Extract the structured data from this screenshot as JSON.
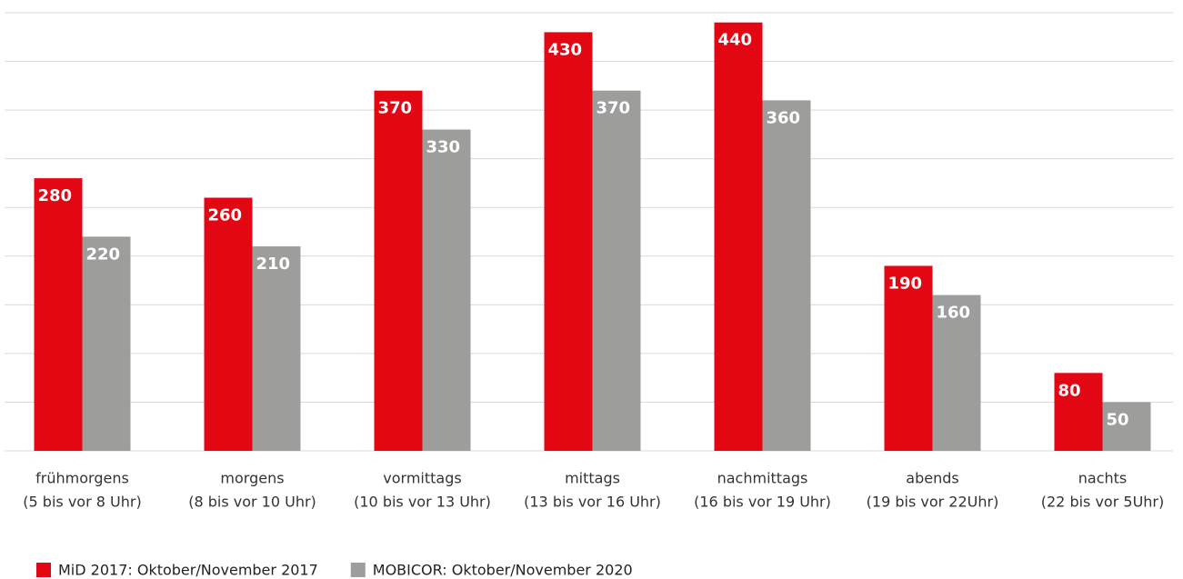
{
  "chart_data": {
    "type": "bar",
    "categories": [
      [
        "frühmorgens",
        "(5 bis vor 8 Uhr)"
      ],
      [
        "morgens",
        "(8 bis vor 10 Uhr)"
      ],
      [
        "vormittags",
        "(10 bis vor 13 Uhr)"
      ],
      [
        "mittags",
        "(13 bis vor 16 Uhr)"
      ],
      [
        "nachmittags",
        "(16 bis vor 19 Uhr)"
      ],
      [
        "abends",
        "(19 bis vor 22Uhr)"
      ],
      [
        "nachts",
        "(22 bis vor 5Uhr)"
      ]
    ],
    "series": [
      {
        "name": "MiD 2017: Oktober/November 2017",
        "color": "#e30613",
        "values": [
          280,
          260,
          370,
          430,
          440,
          190,
          80
        ]
      },
      {
        "name": "MOBICOR: Oktober/November 2020",
        "color": "#9d9d9c",
        "values": [
          220,
          210,
          330,
          370,
          360,
          160,
          50
        ]
      }
    ],
    "ylim": [
      0,
      450
    ],
    "yticks": [
      0,
      50,
      100,
      150,
      200,
      250,
      300,
      350,
      400,
      450
    ],
    "grid": true,
    "legend": "bottom-left"
  }
}
